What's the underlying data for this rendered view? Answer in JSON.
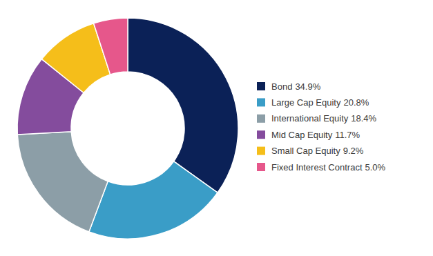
{
  "chart_data": {
    "type": "pie",
    "categories": [
      "Bond",
      "Large Cap Equity",
      "International Equity",
      "Mid Cap Equity",
      "Small Cap Equity",
      "Fixed Interest Contract"
    ],
    "values": [
      34.9,
      20.8,
      18.4,
      11.7,
      9.2,
      5.0
    ],
    "value_labels": [
      "34.9%",
      "20.8%",
      "18.4%",
      "11.7%",
      "9.2%",
      "5.0%"
    ],
    "colors": [
      "#0b2157",
      "#3a9dc7",
      "#8c9ea7",
      "#844c9d",
      "#f5be1a",
      "#e6578b"
    ],
    "legend": "right"
  }
}
